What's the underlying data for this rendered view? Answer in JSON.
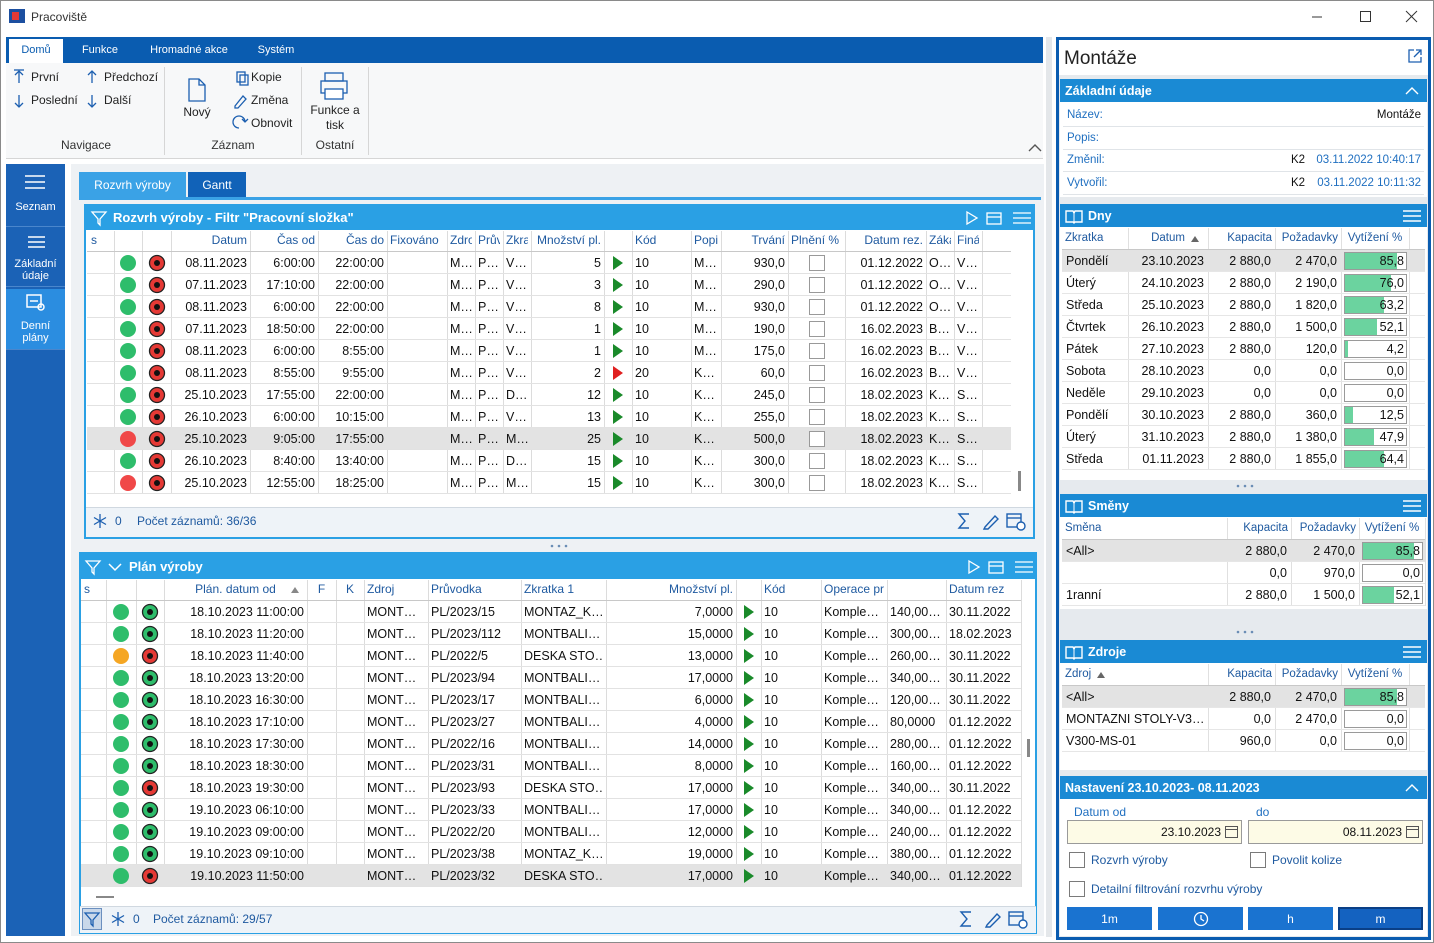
{
  "window": {
    "title": "Pracoviště"
  },
  "ribbon": {
    "tabs": [
      "Domů",
      "Funkce",
      "Hromadné akce",
      "Systém"
    ],
    "groups": [
      {
        "label": "Navigace",
        "buttons": [
          "První",
          "Poslední",
          "Předchozí",
          "Další"
        ]
      },
      {
        "label": "Záznam",
        "buttons": [
          "Nový",
          "Kopie",
          "Změna",
          "Obnovit"
        ]
      },
      {
        "label": "Ostatní",
        "buttons": [
          "Funkce a tisk"
        ]
      }
    ]
  },
  "sidebar": [
    "Seznam",
    "Základní údaje",
    "Denní plány"
  ],
  "view_tabs": [
    "Rozvrh výroby",
    "Gantt"
  ],
  "schedule": {
    "title": "Rozvrh výroby - Filtr \"Pracovní složka\"",
    "headers": [
      "s",
      "Datum",
      "Čas od",
      "Čas do",
      "Fixováno",
      "Zdro",
      "Prův",
      "Zkra",
      "Množství pl.",
      "Kód",
      "Popi",
      "Trvání",
      "Plnění %",
      "Datum rez.",
      "Záka",
      "Finá"
    ],
    "selected_row": 8,
    "rows": [
      {
        "status": "#2ebd6b",
        "dot": "#e53935",
        "arrow": "#1a8a2a",
        "cells": [
          "08.11.2023",
          "6:00:00",
          "22:00:00",
          "M…",
          "P…",
          "V…",
          "5",
          "10",
          "M…",
          "930,0",
          "01.12.2022",
          "O…",
          "V…"
        ]
      },
      {
        "status": "#2ebd6b",
        "dot": "#e53935",
        "arrow": "#1a8a2a",
        "cells": [
          "07.11.2023",
          "17:10:00",
          "22:00:00",
          "M…",
          "P…",
          "V…",
          "3",
          "10",
          "M…",
          "290,0",
          "01.12.2022",
          "O…",
          "V…"
        ]
      },
      {
        "status": "#2ebd6b",
        "dot": "#e53935",
        "arrow": "#1a8a2a",
        "cells": [
          "08.11.2023",
          "6:00:00",
          "22:00:00",
          "M…",
          "P…",
          "V…",
          "8",
          "10",
          "M…",
          "930,0",
          "01.12.2022",
          "O…",
          "V…"
        ]
      },
      {
        "status": "#2ebd6b",
        "dot": "#e53935",
        "arrow": "#1a8a2a",
        "cells": [
          "07.11.2023",
          "18:50:00",
          "22:00:00",
          "M…",
          "P…",
          "V…",
          "1",
          "10",
          "M…",
          "190,0",
          "16.02.2023",
          "B…",
          "V…"
        ]
      },
      {
        "status": "#2ebd6b",
        "dot": "#e53935",
        "arrow": "#1a8a2a",
        "cells": [
          "08.11.2023",
          "6:00:00",
          "8:55:00",
          "M…",
          "P…",
          "V…",
          "1",
          "10",
          "M…",
          "175,0",
          "16.02.2023",
          "B…",
          "V…"
        ]
      },
      {
        "status": "#2ebd6b",
        "dot": "#e53935",
        "arrow": "#e02020",
        "cells": [
          "08.11.2023",
          "8:55:00",
          "9:55:00",
          "M…",
          "P…",
          "V…",
          "2",
          "20",
          "K…",
          "60,0",
          "16.02.2023",
          "B…",
          "V…"
        ]
      },
      {
        "status": "#2ebd6b",
        "dot": "#e53935",
        "arrow": "#1a8a2a",
        "cells": [
          "25.10.2023",
          "17:55:00",
          "22:00:00",
          "M…",
          "P…",
          "D…",
          "12",
          "10",
          "K…",
          "245,0",
          "18.02.2023",
          "K…",
          "S…"
        ]
      },
      {
        "status": "#2ebd6b",
        "dot": "#e53935",
        "arrow": "#1a8a2a",
        "cells": [
          "26.10.2023",
          "6:00:00",
          "10:15:00",
          "M…",
          "P…",
          "V…",
          "13",
          "10",
          "K…",
          "255,0",
          "18.02.2023",
          "K…",
          "S…"
        ]
      },
      {
        "status": "#f04848",
        "dot": "#e53935",
        "arrow": "#1a8a2a",
        "cells": [
          "25.10.2023",
          "9:05:00",
          "17:55:00",
          "M…",
          "P…",
          "M…",
          "25",
          "10",
          "K…",
          "500,0",
          "18.02.2023",
          "K…",
          "S…"
        ]
      },
      {
        "status": "#2ebd6b",
        "dot": "#e53935",
        "arrow": "#1a8a2a",
        "cells": [
          "26.10.2023",
          "8:40:00",
          "13:40:00",
          "M…",
          "P…",
          "D…",
          "15",
          "10",
          "K…",
          "300,0",
          "18.02.2023",
          "K…",
          "S…"
        ]
      },
      {
        "status": "#f04848",
        "dot": "#e53935",
        "arrow": "#1a8a2a",
        "cells": [
          "25.10.2023",
          "12:55:00",
          "18:25:00",
          "M…",
          "P…",
          "M…",
          "15",
          "10",
          "K…",
          "300,0",
          "18.02.2023",
          "K…",
          "S…"
        ]
      }
    ],
    "footer": {
      "count": "0",
      "records": "Počet záznamů: 36/36"
    }
  },
  "plan": {
    "title": "Plán výroby",
    "headers": [
      "s",
      "Plán. datum od",
      "F",
      "K",
      "Zdroj",
      "Průvodka",
      "Zkratka 1",
      "Množství pl.",
      "Kód",
      "Operace pr",
      "Datum rez"
    ],
    "selected_row": 12,
    "rows": [
      {
        "status": "#2ebd6b",
        "dot": "#2ebd6b",
        "arrow": "#1a8a2a",
        "cells": [
          "18.10.2023 11:00:00",
          "MONT…",
          "PL/2023/15",
          "MONTAZ_K…",
          "7,0000",
          "10",
          "Komple…",
          "140,00…",
          "30.11.2022"
        ]
      },
      {
        "status": "#2ebd6b",
        "dot": "#2ebd6b",
        "arrow": "#1a8a2a",
        "cells": [
          "18.10.2023 11:20:00",
          "MONT…",
          "PL/2023/112",
          "MONTBALI…",
          "15,0000",
          "10",
          "Komple…",
          "300,00…",
          "18.02.2023"
        ]
      },
      {
        "status": "#f5a623",
        "dot": "#e53935",
        "arrow": "#1a8a2a",
        "cells": [
          "18.10.2023 11:40:00",
          "MONT…",
          "PL/2022/5",
          "DESKA STO…",
          "13,0000",
          "10",
          "Komple…",
          "260,00…",
          "30.11.2022"
        ]
      },
      {
        "status": "#2ebd6b",
        "dot": "#2ebd6b",
        "arrow": "#1a8a2a",
        "cells": [
          "18.10.2023 13:20:00",
          "MONT…",
          "PL/2023/94",
          "MONTBALI…",
          "17,0000",
          "10",
          "Komple…",
          "340,00…",
          "30.11.2022"
        ]
      },
      {
        "status": "#2ebd6b",
        "dot": "#2ebd6b",
        "arrow": "#1a8a2a",
        "cells": [
          "18.10.2023 16:30:00",
          "MONT…",
          "PL/2023/17",
          "MONTBALI…",
          "6,0000",
          "10",
          "Komple…",
          "120,00…",
          "30.11.2022"
        ]
      },
      {
        "status": "#2ebd6b",
        "dot": "#2ebd6b",
        "arrow": "#1a8a2a",
        "cells": [
          "18.10.2023 17:10:00",
          "MONT…",
          "PL/2023/27",
          "MONTBALI…",
          "4,0000",
          "10",
          "Komple…",
          "80,0000",
          "01.12.2022"
        ]
      },
      {
        "status": "#2ebd6b",
        "dot": "#2ebd6b",
        "arrow": "#1a8a2a",
        "cells": [
          "18.10.2023 17:30:00",
          "MONT…",
          "PL/2022/16",
          "MONTBALI…",
          "14,0000",
          "10",
          "Komple…",
          "280,00…",
          "01.12.2022"
        ]
      },
      {
        "status": "#2ebd6b",
        "dot": "#2ebd6b",
        "arrow": "#1a8a2a",
        "cells": [
          "18.10.2023 18:30:00",
          "MONT…",
          "PL/2023/31",
          "MONTBALI…",
          "8,0000",
          "10",
          "Komple…",
          "160,00…",
          "01.12.2022"
        ]
      },
      {
        "status": "#2ebd6b",
        "dot": "#e53935",
        "arrow": "#1a8a2a",
        "cells": [
          "18.10.2023 19:30:00",
          "MONT…",
          "PL/2023/93",
          "DESKA STO…",
          "17,0000",
          "10",
          "Komple…",
          "340,00…",
          "30.11.2022"
        ]
      },
      {
        "status": "#2ebd6b",
        "dot": "#2ebd6b",
        "arrow": "#1a8a2a",
        "cells": [
          "19.10.2023 06:10:00",
          "MONT…",
          "PL/2023/33",
          "MONTBALI…",
          "17,0000",
          "10",
          "Komple…",
          "340,00…",
          "01.12.2022"
        ]
      },
      {
        "status": "#2ebd6b",
        "dot": "#2ebd6b",
        "arrow": "#1a8a2a",
        "cells": [
          "19.10.2023 09:00:00",
          "MONT…",
          "PL/2022/20",
          "MONTBALI…",
          "12,0000",
          "10",
          "Komple…",
          "240,00…",
          "01.12.2022"
        ]
      },
      {
        "status": "#2ebd6b",
        "dot": "#2ebd6b",
        "arrow": "#1a8a2a",
        "cells": [
          "19.10.2023 09:10:00",
          "MONT…",
          "PL/2023/38",
          "MONTAZ_K…",
          "19,0000",
          "10",
          "Komple…",
          "380,00…",
          "01.12.2022"
        ]
      },
      {
        "status": "#2ebd6b",
        "dot": "#e53935",
        "arrow": "#1a8a2a",
        "cells": [
          "19.10.2023 11:50:00",
          "MONT…",
          "PL/2023/32",
          "DESKA STO…",
          "17,0000",
          "10",
          "Komple…",
          "340,00…",
          "01.12.2022"
        ]
      }
    ],
    "footer": {
      "count": "0",
      "records": "Počet záznamů: 29/57"
    }
  },
  "detail": {
    "title": "Montáže",
    "basic": {
      "title": "Základní údaje",
      "fields": [
        {
          "label": "Název:",
          "value": "Montáže"
        },
        {
          "label": "Popis:"
        },
        {
          "label": "Změnil:",
          "user": "K2",
          "value": "03.11.2022 10:40:17"
        },
        {
          "label": "Vytvořil:",
          "user": "K2",
          "value": "03.11.2022 10:11:32"
        }
      ]
    },
    "days": {
      "title": "Dny",
      "headers": [
        "Zkratka",
        "Datum",
        "Kapacita",
        "Požadavky",
        "Vytížení %"
      ],
      "selected_row": 0,
      "rows": [
        {
          "cells": [
            "Pondělí",
            "23.10.2023",
            "2 880,0",
            "2 470,0"
          ],
          "util": {
            "value": 85.8,
            "label": "85,8"
          }
        },
        {
          "cells": [
            "Úterý",
            "24.10.2023",
            "2 880,0",
            "2 190,0"
          ],
          "util": {
            "value": 76.0,
            "label": "76,0"
          }
        },
        {
          "cells": [
            "Středa",
            "25.10.2023",
            "2 880,0",
            "1 820,0"
          ],
          "util": {
            "value": 63.2,
            "label": "63,2"
          }
        },
        {
          "cells": [
            "Čtvrtek",
            "26.10.2023",
            "2 880,0",
            "1 500,0"
          ],
          "util": {
            "value": 52.1,
            "label": "52,1"
          }
        },
        {
          "cells": [
            "Pátek",
            "27.10.2023",
            "2 880,0",
            "120,0"
          ],
          "util": {
            "value": 4.2,
            "label": "4,2"
          }
        },
        {
          "cells": [
            "Sobota",
            "28.10.2023",
            "0,0",
            "0,0"
          ],
          "util": {
            "value": 0,
            "label": "0,0"
          }
        },
        {
          "cells": [
            "Neděle",
            "29.10.2023",
            "0,0",
            "0,0"
          ],
          "util": {
            "value": 0,
            "label": "0,0"
          }
        },
        {
          "cells": [
            "Pondělí",
            "30.10.2023",
            "2 880,0",
            "360,0"
          ],
          "util": {
            "value": 12.5,
            "label": "12,5"
          }
        },
        {
          "cells": [
            "Úterý",
            "31.10.2023",
            "2 880,0",
            "1 380,0"
          ],
          "util": {
            "value": 47.9,
            "label": "47,9"
          }
        },
        {
          "cells": [
            "Středa",
            "01.11.2023",
            "2 880,0",
            "1 855,0"
          ],
          "util": {
            "value": 64.4,
            "label": "64,4"
          }
        }
      ]
    },
    "shifts": {
      "title": "Směny",
      "headers": [
        "Směna",
        "Kapacita",
        "Požadavky",
        "Vytížení %"
      ],
      "selected_row": 0,
      "rows": [
        {
          "cells": [
            "<All>",
            "2 880,0",
            "2 470,0"
          ],
          "util": {
            "value": 85.8,
            "label": "85,8"
          }
        },
        {
          "cells": [
            null,
            "0,0",
            "970,0"
          ],
          "util": {
            "value": 0,
            "label": "0,0"
          }
        },
        {
          "cells": [
            "1ranní",
            "2 880,0",
            "1 500,0"
          ],
          "util": {
            "value": 52.1,
            "label": "52,1"
          }
        }
      ]
    },
    "resources": {
      "title": "Zdroje",
      "headers": [
        "Zdroj",
        "Kapacita",
        "Požadavky",
        "Vytížení %"
      ],
      "selected_row": 0,
      "rows": [
        {
          "cells": [
            "<All>",
            "2 880,0",
            "2 470,0"
          ],
          "util": {
            "value": 85.8,
            "label": "85,8"
          }
        },
        {
          "cells": [
            "MONTAZNI STOLY-V3…",
            "0,0",
            "2 470,0"
          ],
          "util": {
            "value": 0,
            "label": "0,0"
          }
        },
        {
          "cells": [
            "V300-MS-01",
            "960,0",
            "0,0"
          ],
          "util": {
            "value": 0,
            "label": "0,0"
          }
        }
      ]
    },
    "settings": {
      "title": "Nastavení 23.10.2023- 08.11.2023",
      "from_label": "Datum od",
      "from": "23.10.2023",
      "to_label": "do",
      "to": "08.11.2023",
      "checkboxes": [
        "Rozvrh výroby",
        "Povolit kolize",
        "Detailní filtrování rozvrhu výroby"
      ],
      "buttons": [
        "1m",
        "h",
        "m"
      ]
    }
  }
}
